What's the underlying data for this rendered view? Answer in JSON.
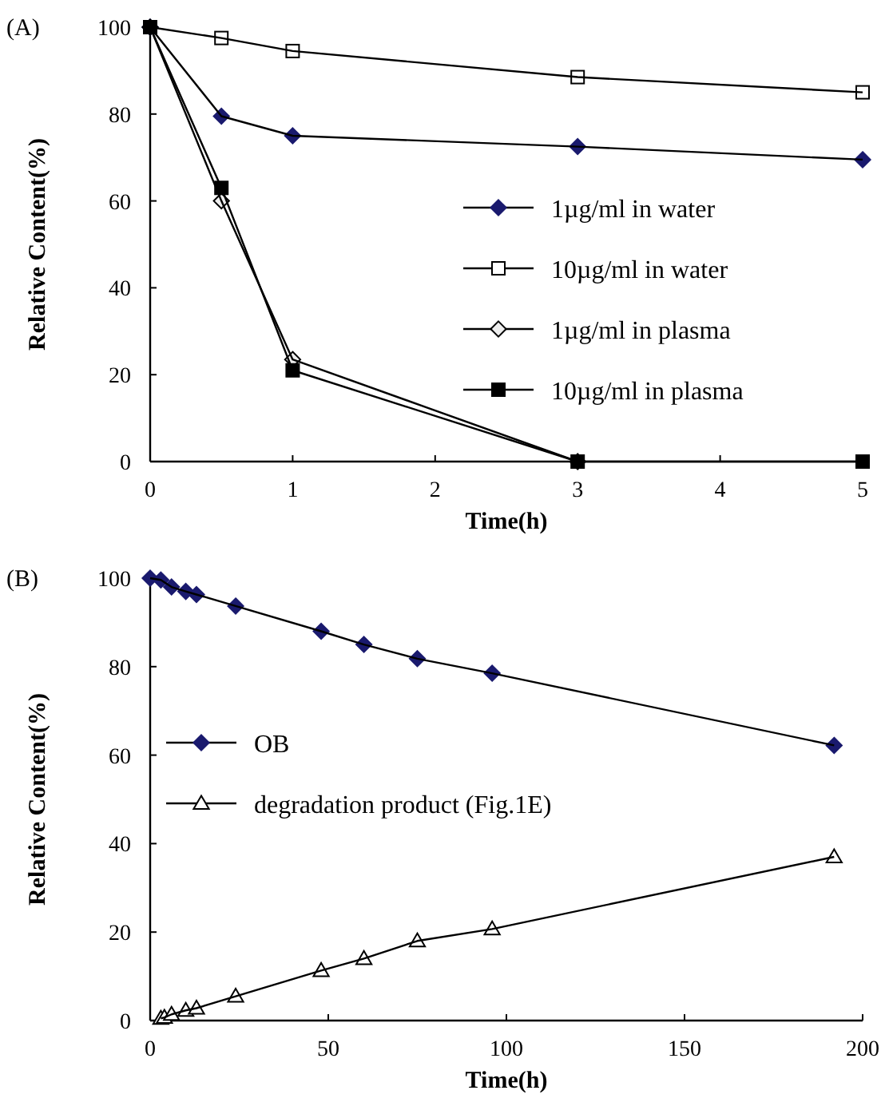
{
  "chart_data": [
    {
      "type": "line",
      "title": "(A)",
      "xlabel": "Time(h)",
      "ylabel": "Relative Content(%)",
      "x": [
        0,
        0.5,
        1,
        3,
        5
      ],
      "xlim": [
        0,
        5
      ],
      "xticks": [
        0,
        1,
        2,
        3,
        4,
        5
      ],
      "ylim": [
        0,
        100
      ],
      "yticks": [
        0,
        20,
        40,
        60,
        80,
        100
      ],
      "grid": false,
      "legend": "right",
      "line_style": "solid",
      "series": [
        {
          "name": "1µg/ml in water",
          "color": "#1a1a6e",
          "marker": "diamond",
          "values": [
            100,
            79.5,
            75,
            72.5,
            69.5
          ]
        },
        {
          "name": "10µg/ml in water",
          "color": "#ffffff",
          "marker": "square",
          "values": [
            100,
            97.5,
            94.5,
            88.5,
            85
          ]
        },
        {
          "name": "1µg/ml in plasma",
          "color": "#eeeeee",
          "marker": "diamond",
          "values": [
            100,
            60,
            23.5,
            0,
            null
          ]
        },
        {
          "name": "10µg/ml in plasma",
          "color": "#000000",
          "marker": "square",
          "values": [
            100,
            63,
            21,
            0,
            0
          ]
        }
      ]
    },
    {
      "type": "line",
      "title": "(B)",
      "xlabel": "Time(h)",
      "ylabel": "Relative Content(%)",
      "xlim": [
        0,
        200
      ],
      "xticks": [
        0,
        50,
        100,
        150,
        200
      ],
      "ylim": [
        0,
        100
      ],
      "yticks": [
        0,
        20,
        40,
        60,
        80,
        100
      ],
      "grid": false,
      "legend": "left",
      "line_style": "solid",
      "series": [
        {
          "name": "OB",
          "color": "#1a1a6e",
          "marker": "diamond",
          "x": [
            0,
            3,
            6,
            10,
            13,
            24,
            48,
            60,
            75,
            96,
            192
          ],
          "values": [
            100,
            99.6,
            98,
            97,
            96.3,
            93.7,
            88,
            85,
            81.8,
            78.5,
            62.2
          ]
        },
        {
          "name": "degradation product (Fig.1E)",
          "color": "#ffffff",
          "marker": "triangle",
          "x": [
            3,
            4,
            6,
            10,
            13,
            24,
            48,
            60,
            75,
            96,
            192
          ],
          "values": [
            0.5,
            0.7,
            1.4,
            2.3,
            2.8,
            5.5,
            11.3,
            14,
            18,
            20.7,
            37
          ]
        }
      ]
    }
  ]
}
